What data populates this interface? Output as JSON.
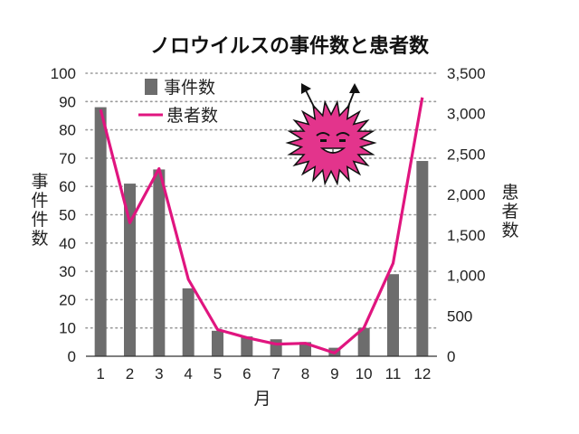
{
  "chart_data": {
    "type": "bar",
    "title": "ノロウイルスの事件数と患者数",
    "xlabel": "月",
    "ylabel_left": "事件件数",
    "ylabel_right": "患者数",
    "categories": [
      "1",
      "2",
      "3",
      "4",
      "5",
      "6",
      "7",
      "8",
      "9",
      "10",
      "11",
      "12"
    ],
    "ylim_left": [
      0,
      100
    ],
    "ylim_right": [
      0,
      3500
    ],
    "yticks_left": [
      "0",
      "10",
      "20",
      "30",
      "40",
      "50",
      "60",
      "70",
      "80",
      "90",
      "100"
    ],
    "yticks_right": [
      "0",
      "500",
      "1,000",
      "1,500",
      "2,000",
      "2,500",
      "3,000",
      "3,500"
    ],
    "grid": "horizontal dotted",
    "legend_position": "top-left",
    "series": [
      {
        "name": "事件数",
        "type": "bar",
        "axis": "left",
        "color": "#6d6d6d",
        "values": [
          88,
          61,
          66,
          24,
          9,
          7,
          6,
          5,
          3,
          10,
          29,
          69
        ]
      },
      {
        "name": "患者数",
        "type": "line",
        "axis": "right",
        "color": "#e0157f",
        "values": [
          3050,
          1650,
          2320,
          950,
          330,
          230,
          150,
          160,
          40,
          350,
          1150,
          3200
        ]
      }
    ]
  }
}
